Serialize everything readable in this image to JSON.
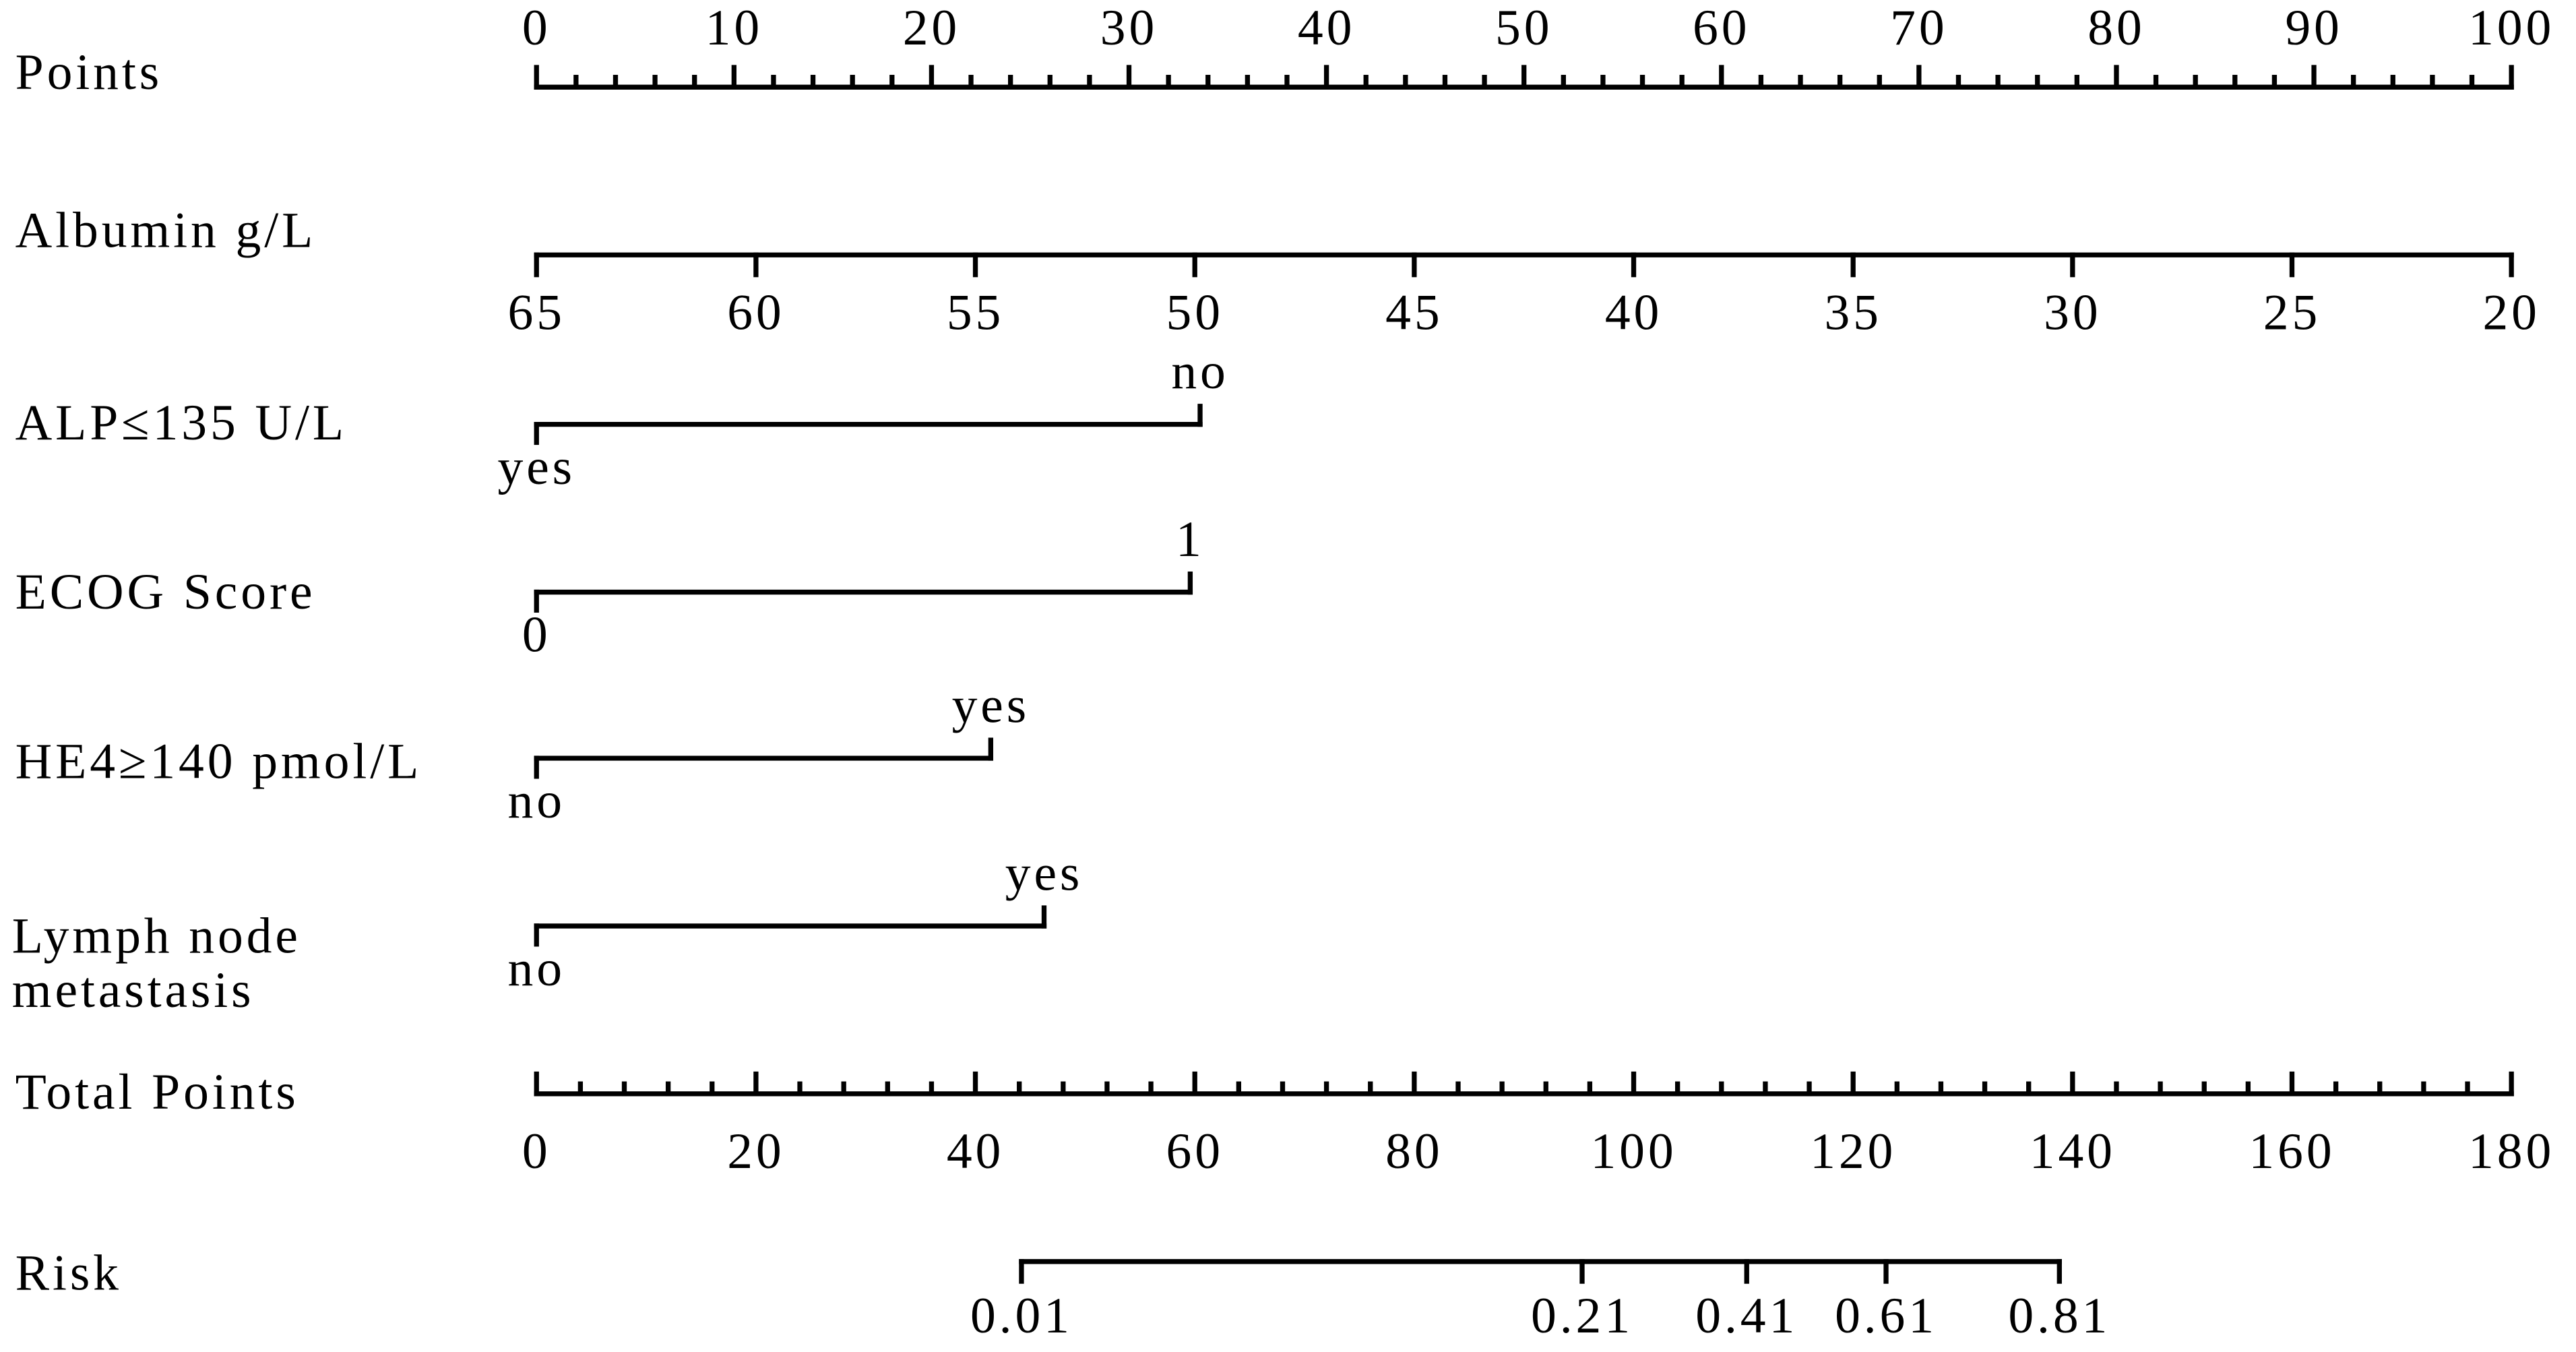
{
  "chart_data": {
    "type": "nomogram",
    "axes": [
      {
        "label": "Points",
        "xlim": [
          0,
          100
        ],
        "ticks": [
          0,
          10,
          20,
          30,
          40,
          50,
          60,
          70,
          80,
          90,
          100
        ],
        "minor_ticks": [
          2,
          4,
          6,
          8,
          12,
          14,
          16,
          18,
          22,
          24,
          26,
          28,
          32,
          34,
          36,
          38,
          42,
          44,
          46,
          48,
          52,
          54,
          56,
          58,
          62,
          64,
          66,
          68,
          72,
          74,
          76,
          78,
          82,
          84,
          86,
          88,
          92,
          94,
          96,
          98
        ]
      },
      {
        "label": "Albumin g/L",
        "xlim": [
          65,
          20
        ],
        "ticks": [
          65,
          60,
          55,
          50,
          45,
          40,
          35,
          30,
          25,
          20
        ]
      },
      {
        "label": "ALP≤135 U/L",
        "categories": [
          "yes",
          "no"
        ],
        "points": [
          0,
          33.6
        ]
      },
      {
        "label": "ECOG Score",
        "categories": [
          "0",
          "1"
        ],
        "points": [
          0,
          33.1
        ]
      },
      {
        "label": "HE4≥140 pmol/L",
        "categories": [
          "no",
          "yes"
        ],
        "points": [
          0,
          23
        ]
      },
      {
        "label": [
          "Lymph node",
          "metastasis"
        ],
        "categories": [
          "no",
          "yes"
        ],
        "points": [
          0,
          25.7
        ]
      },
      {
        "label": "Total Points",
        "xlim": [
          0,
          180
        ],
        "ticks": [
          0,
          20,
          40,
          60,
          80,
          100,
          120,
          140,
          160,
          180
        ],
        "minor_ticks": [
          4,
          8,
          12,
          16,
          24,
          28,
          32,
          36,
          44,
          48,
          52,
          56,
          64,
          68,
          72,
          76,
          84,
          88,
          92,
          96,
          104,
          108,
          112,
          116,
          124,
          128,
          132,
          136,
          144,
          148,
          152,
          156,
          164,
          168,
          172,
          176
        ]
      },
      {
        "label": "Risk",
        "ticks": [
          0.01,
          0.21,
          0.41,
          0.61,
          0.81
        ],
        "total_points": [
          44.2,
          95.3,
          110.3,
          123,
          138.8
        ]
      }
    ]
  }
}
